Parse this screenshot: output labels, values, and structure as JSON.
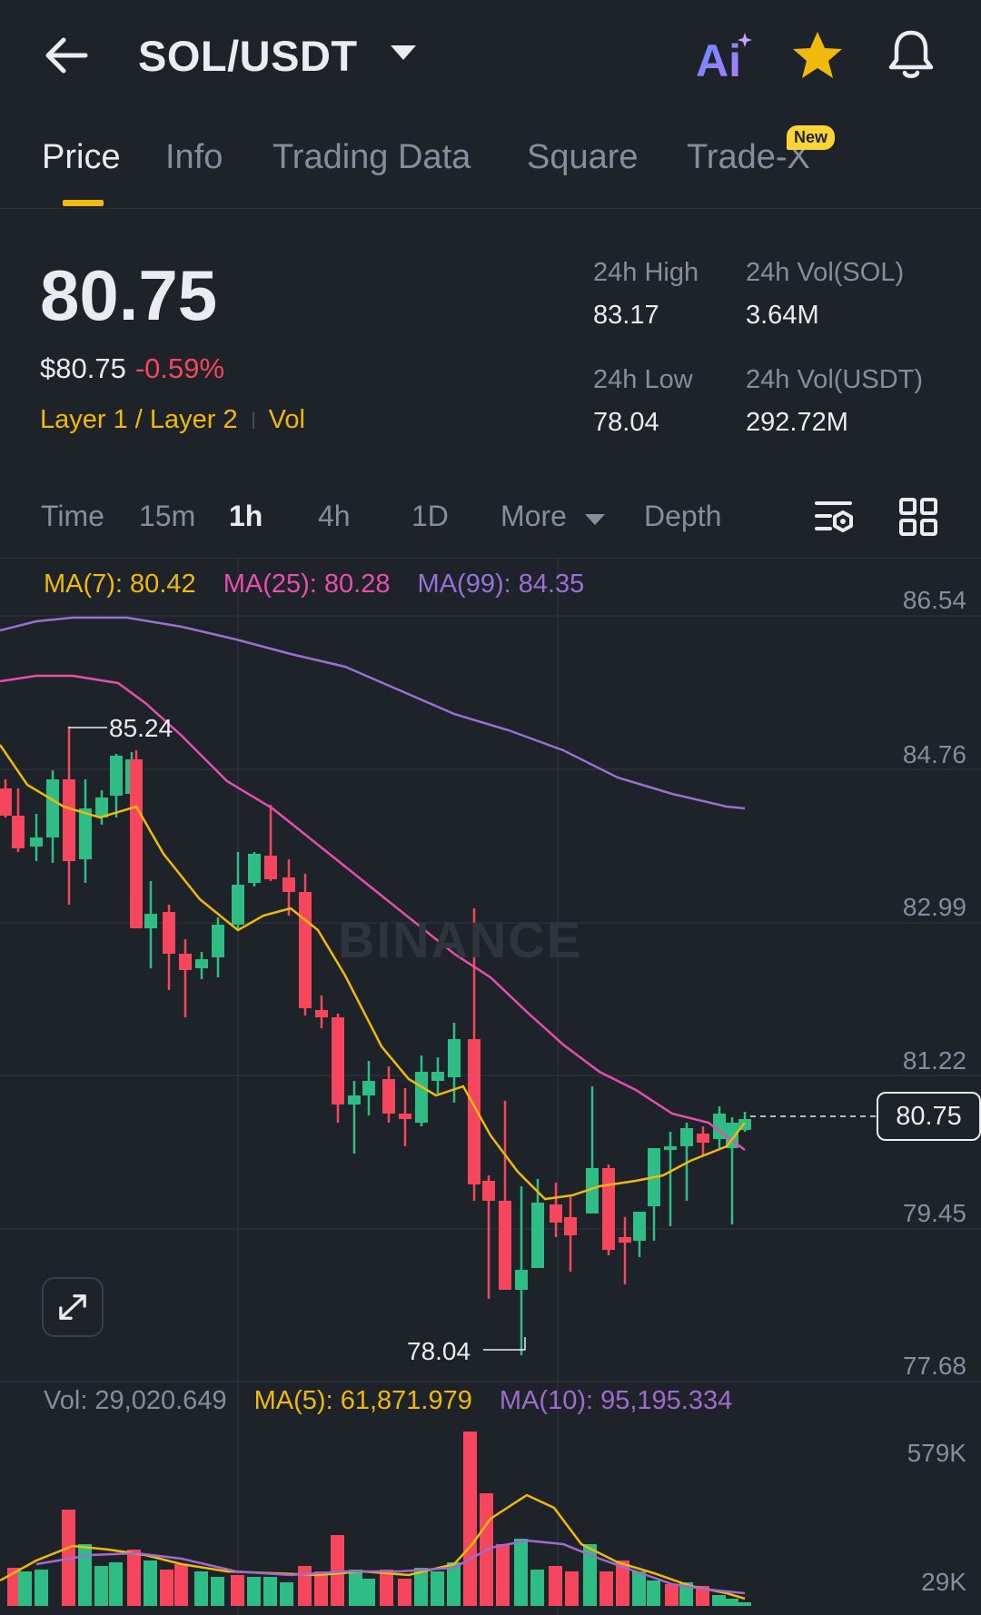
{
  "header": {
    "pair": "SOL/USDT",
    "icons": [
      "back-arrow-icon",
      "ai-icon",
      "star-icon",
      "bell-icon"
    ],
    "ai_label": "Ai",
    "colors": {
      "star": "#f0b90b",
      "ai_gradient_start": "#6a8dff",
      "ai_gradient_end": "#b67bff"
    }
  },
  "tabs": [
    {
      "label": "Price",
      "active": true
    },
    {
      "label": "Info"
    },
    {
      "label": "Trading Data"
    },
    {
      "label": "Square"
    },
    {
      "label": "Trade-X",
      "badge": "New"
    }
  ],
  "price": {
    "last": "80.75",
    "usd": "$80.75",
    "change": "-0.59%",
    "tag1": "Layer 1 / Layer 2",
    "tag2": "Vol",
    "stats": {
      "high_label": "24h High",
      "high_value": "83.17",
      "low_label": "24h Low",
      "low_value": "78.04",
      "vol_sol_label": "24h Vol(SOL)",
      "vol_sol_value": "3.64M",
      "vol_usdt_label": "24h Vol(USDT)",
      "vol_usdt_value": "292.72M"
    }
  },
  "intervals": {
    "time": "Time",
    "m15": "15m",
    "h1": "1h",
    "h4": "4h",
    "d1": "1D",
    "more": "More",
    "depth": "Depth",
    "active": "1h"
  },
  "chart": {
    "watermark": "BINANCE",
    "ma7": "MA(7): 80.42",
    "ma25": "MA(25): 80.28",
    "ma99": "MA(99): 84.35",
    "axis": [
      "86.54",
      "84.76",
      "82.99",
      "81.22",
      "79.45",
      "77.68"
    ],
    "last_price": "80.75",
    "high_marker": "85.24",
    "low_marker": "78.04",
    "vol": "Vol: 29,020.649",
    "vol_ma5": "MA(5): 61,871.979",
    "vol_ma10": "MA(10): 95,195.334",
    "vol_axis_top": "579K",
    "vol_axis_bottom": "29K",
    "colors": {
      "up": "#2ebd85",
      "down": "#f6465d",
      "ma7": "#f0b90b",
      "ma25": "#e64fae",
      "ma99": "#9a6fd6",
      "vol_ma10": "#a06bd0"
    }
  }
}
